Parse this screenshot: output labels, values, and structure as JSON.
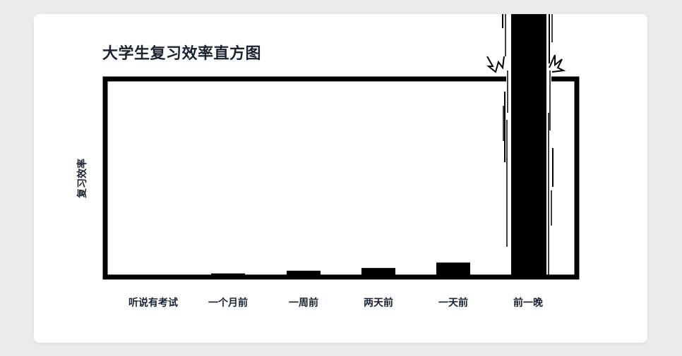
{
  "chart_data": {
    "type": "bar",
    "title": "大学生复习效率直方图",
    "xlabel": "",
    "ylabel": "复习效率",
    "categories": [
      "听说有考试",
      "一个月前",
      "一周前",
      "两天前",
      "一天前",
      "前一晚"
    ],
    "values": [
      0,
      2,
      3.5,
      5,
      8,
      100
    ],
    "ylim": [
      0,
      100
    ],
    "grid": false,
    "colors": {
      "bar": "#000000",
      "frame": "#000000",
      "text": "#1a2330",
      "background": "#ffffff"
    }
  }
}
